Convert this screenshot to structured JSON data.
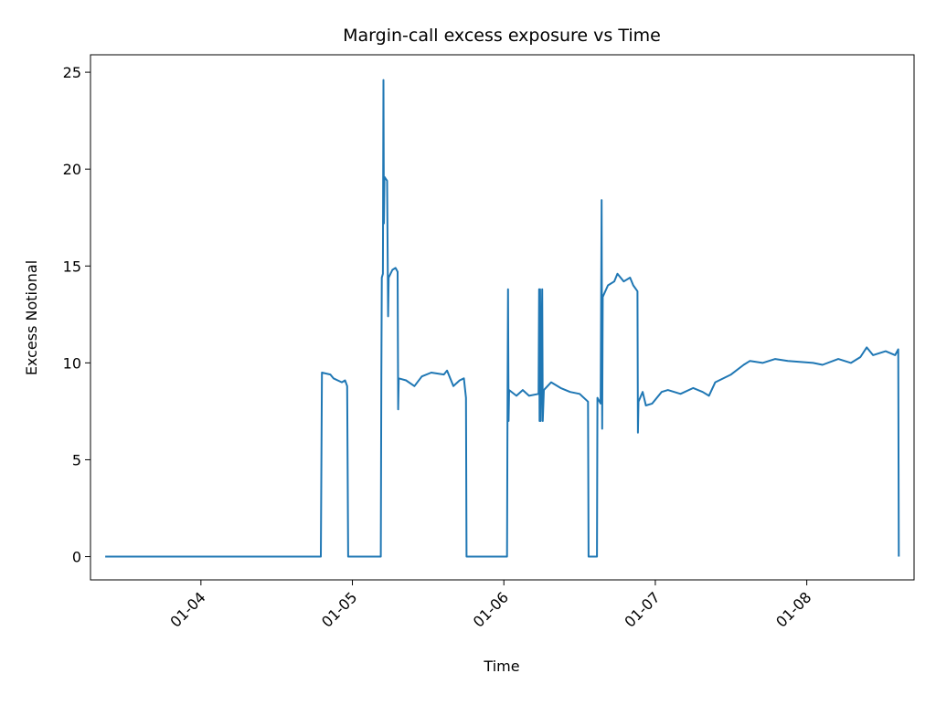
{
  "chart_data": {
    "type": "line",
    "title": "Margin-call excess exposure vs Time",
    "xlabel": "Time",
    "ylabel": "Excess Notional",
    "x_type": "date",
    "xlim": [
      "2024-01-03 06:30",
      "2024-01-08 17:00"
    ],
    "ylim": [
      -1.2,
      25.9
    ],
    "x_ticks": [
      {
        "value": "2024-01-04 00:00",
        "label": "01-04"
      },
      {
        "value": "2024-01-05 00:00",
        "label": "01-05"
      },
      {
        "value": "2024-01-06 00:00",
        "label": "01-06"
      },
      {
        "value": "2024-01-07 00:00",
        "label": "01-07"
      },
      {
        "value": "2024-01-08 00:00",
        "label": "01-08"
      }
    ],
    "y_ticks": [
      0,
      5,
      10,
      15,
      20,
      25
    ],
    "grid": false,
    "legend": "none",
    "line_color": "#1f77b4",
    "series": [
      {
        "points": [
          [
            "2024-01-03 08:50",
            0
          ],
          [
            "2024-01-04 19:00",
            0
          ],
          [
            "2024-01-04 19:10",
            9.5
          ],
          [
            "2024-01-04 20:30",
            9.4
          ],
          [
            "2024-01-04 21:00",
            9.2
          ],
          [
            "2024-01-04 21:40",
            9.1
          ],
          [
            "2024-01-04 22:20",
            9.0
          ],
          [
            "2024-01-04 22:50",
            9.1
          ],
          [
            "2024-01-04 23:10",
            8.8
          ],
          [
            "2024-01-04 23:20",
            0
          ],
          [
            "2024-01-05 04:30",
            0
          ],
          [
            "2024-01-05 04:35",
            9.3
          ],
          [
            "2024-01-05 04:40",
            14.4
          ],
          [
            "2024-01-05 04:50",
            14.6
          ],
          [
            "2024-01-05 04:55",
            24.6
          ],
          [
            "2024-01-05 05:00",
            17.2
          ],
          [
            "2024-01-05 05:05",
            19.6
          ],
          [
            "2024-01-05 05:30",
            19.4
          ],
          [
            "2024-01-05 05:40",
            12.4
          ],
          [
            "2024-01-05 05:45",
            14.4
          ],
          [
            "2024-01-05 06:20",
            14.8
          ],
          [
            "2024-01-05 06:50",
            14.9
          ],
          [
            "2024-01-05 07:10",
            14.7
          ],
          [
            "2024-01-05 07:15",
            7.6
          ],
          [
            "2024-01-05 07:20",
            9.2
          ],
          [
            "2024-01-05 08:30",
            9.1
          ],
          [
            "2024-01-05 09:50",
            8.8
          ],
          [
            "2024-01-05 11:00",
            9.3
          ],
          [
            "2024-01-05 12:30",
            9.5
          ],
          [
            "2024-01-05 14:30",
            9.4
          ],
          [
            "2024-01-05 15:00",
            9.6
          ],
          [
            "2024-01-05 16:00",
            8.8
          ],
          [
            "2024-01-05 17:00",
            9.1
          ],
          [
            "2024-01-05 17:40",
            9.2
          ],
          [
            "2024-01-05 18:00",
            8.2
          ],
          [
            "2024-01-05 18:05",
            0
          ],
          [
            "2024-01-06 00:30",
            0
          ],
          [
            "2024-01-06 00:35",
            8.6
          ],
          [
            "2024-01-06 00:40",
            13.8
          ],
          [
            "2024-01-06 00:45",
            7.0
          ],
          [
            "2024-01-06 00:50",
            8.6
          ],
          [
            "2024-01-06 02:00",
            8.3
          ],
          [
            "2024-01-06 03:00",
            8.6
          ],
          [
            "2024-01-06 04:00",
            8.3
          ],
          [
            "2024-01-06 05:30",
            8.4
          ],
          [
            "2024-01-06 05:35",
            13.8
          ],
          [
            "2024-01-06 05:40",
            7.0
          ],
          [
            "2024-01-06 05:45",
            13.8
          ],
          [
            "2024-01-06 05:50",
            7.0
          ],
          [
            "2024-01-06 06:05",
            13.8
          ],
          [
            "2024-01-06 06:10",
            7.0
          ],
          [
            "2024-01-06 06:20",
            8.6
          ],
          [
            "2024-01-06 07:30",
            9.0
          ],
          [
            "2024-01-06 09:00",
            8.7
          ],
          [
            "2024-01-06 10:30",
            8.5
          ],
          [
            "2024-01-06 12:00",
            8.4
          ],
          [
            "2024-01-06 13:20",
            8.0
          ],
          [
            "2024-01-06 13:25",
            0
          ],
          [
            "2024-01-06 14:45",
            0
          ],
          [
            "2024-01-06 14:50",
            8.2
          ],
          [
            "2024-01-06 15:20",
            7.9
          ],
          [
            "2024-01-06 15:30",
            18.4
          ],
          [
            "2024-01-06 15:35",
            6.6
          ],
          [
            "2024-01-06 15:40",
            13.4
          ],
          [
            "2024-01-06 16:30",
            14.0
          ],
          [
            "2024-01-06 17:30",
            14.2
          ],
          [
            "2024-01-06 18:00",
            14.6
          ],
          [
            "2024-01-06 19:00",
            14.2
          ],
          [
            "2024-01-06 20:00",
            14.4
          ],
          [
            "2024-01-06 20:30",
            14.0
          ],
          [
            "2024-01-06 21:10",
            13.7
          ],
          [
            "2024-01-06 21:15",
            6.4
          ],
          [
            "2024-01-06 21:20",
            8.0
          ],
          [
            "2024-01-06 22:00",
            8.5
          ],
          [
            "2024-01-06 22:30",
            7.8
          ],
          [
            "2024-01-06 23:30",
            7.9
          ],
          [
            "2024-01-07 01:00",
            8.5
          ],
          [
            "2024-01-07 02:00",
            8.6
          ],
          [
            "2024-01-07 04:00",
            8.4
          ],
          [
            "2024-01-07 06:00",
            8.7
          ],
          [
            "2024-01-07 07:30",
            8.5
          ],
          [
            "2024-01-07 08:30",
            8.3
          ],
          [
            "2024-01-07 09:30",
            9.0
          ],
          [
            "2024-01-07 12:00",
            9.4
          ],
          [
            "2024-01-07 14:00",
            9.9
          ],
          [
            "2024-01-07 15:00",
            10.1
          ],
          [
            "2024-01-07 17:00",
            10.0
          ],
          [
            "2024-01-07 19:00",
            10.2
          ],
          [
            "2024-01-07 21:00",
            10.1
          ],
          [
            "2024-01-08 01:00",
            10.0
          ],
          [
            "2024-01-08 02:30",
            9.9
          ],
          [
            "2024-01-08 05:00",
            10.2
          ],
          [
            "2024-01-08 07:00",
            10.0
          ],
          [
            "2024-01-08 08:30",
            10.3
          ],
          [
            "2024-01-08 09:30",
            10.8
          ],
          [
            "2024-01-08 10:30",
            10.4
          ],
          [
            "2024-01-08 12:30",
            10.6
          ],
          [
            "2024-01-08 14:00",
            10.4
          ],
          [
            "2024-01-08 14:30",
            10.7
          ],
          [
            "2024-01-08 14:35",
            0
          ]
        ]
      }
    ]
  }
}
